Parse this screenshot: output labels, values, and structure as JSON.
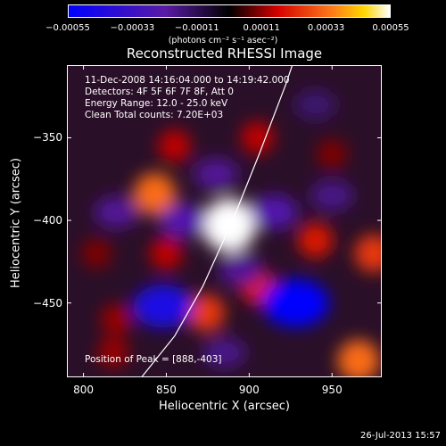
{
  "chart_data": {
    "type": "heatmap",
    "title": "Reconstructed RHESSI Image",
    "xlabel": "Heliocentric X (arcsec)",
    "ylabel": "Heliocentric Y (arcsec)",
    "xlim": [
      790,
      980
    ],
    "ylim": [
      -495,
      -306
    ],
    "xticks": [
      "800",
      "850",
      "900",
      "950"
    ],
    "yticks": [
      "-350",
      "-400",
      "-450"
    ],
    "colorbar": {
      "ticks": [
        "-0.00055",
        "-0.00033",
        "-0.00011",
        "0.00011",
        "0.00033",
        "0.00055"
      ],
      "units": "(photons cm⁻² s⁻¹ asec⁻²)",
      "range": [
        -0.00055,
        0.00055
      ],
      "colormap": [
        "#0000ff",
        "#5a1aa6",
        "#000000",
        "#d40000",
        "#ff7a1a",
        "#ffd600",
        "#ffffff"
      ]
    },
    "info": [
      "11-Dec-2008 14:16:04.000 to 14:19:42.000",
      "Detectors: 4F 5F 6F 7F 8F, Att 0",
      "Energy Range: 12.0 - 25.0 keV",
      "Clean     Total counts: 7.20E+03"
    ],
    "peak": {
      "x": 888,
      "y": -403,
      "label": "Position of Peak = [888,-403]"
    },
    "limb_curve": [
      [
        835,
        -495
      ],
      [
        855,
        -470
      ],
      [
        872,
        -440
      ],
      [
        890,
        -400
      ],
      [
        906,
        -360
      ],
      [
        922,
        -318
      ],
      [
        926,
        -306
      ]
    ],
    "sources": [
      {
        "x": 888,
        "y": -403,
        "value": 0.00055
      },
      {
        "x": 843,
        "y": -384,
        "value": 0.00033
      },
      {
        "x": 874,
        "y": -456,
        "value": 0.00025
      },
      {
        "x": 966,
        "y": -485,
        "value": 0.00033
      },
      {
        "x": 975,
        "y": -420,
        "value": 0.00025
      },
      {
        "x": 940,
        "y": -412,
        "value": 0.0002
      },
      {
        "x": 905,
        "y": -440,
        "value": 0.0002
      },
      {
        "x": 850,
        "y": -420,
        "value": 0.00015
      },
      {
        "x": 855,
        "y": -355,
        "value": 0.00015
      },
      {
        "x": 905,
        "y": -350,
        "value": 0.00015
      },
      {
        "x": 820,
        "y": -460,
        "value": 0.00012
      },
      {
        "x": 808,
        "y": -420,
        "value": 0.0001
      },
      {
        "x": 950,
        "y": -360,
        "value": 0.0001
      },
      {
        "x": 818,
        "y": -480,
        "value": 0.00012
      },
      {
        "x": 928,
        "y": -450,
        "value": -0.00055
      },
      {
        "x": 848,
        "y": -452,
        "value": -0.00045
      },
      {
        "x": 860,
        "y": -400,
        "value": -0.00025
      },
      {
        "x": 915,
        "y": -395,
        "value": -0.00025
      },
      {
        "x": 880,
        "y": -372,
        "value": -0.0002
      },
      {
        "x": 895,
        "y": -430,
        "value": -0.0002
      },
      {
        "x": 820,
        "y": -395,
        "value": -0.0002
      },
      {
        "x": 950,
        "y": -385,
        "value": -0.00018
      },
      {
        "x": 885,
        "y": -480,
        "value": -0.00018
      },
      {
        "x": 940,
        "y": -330,
        "value": -0.00015
      }
    ]
  },
  "footer": {
    "date": "26-Jul-2013 15:57"
  }
}
